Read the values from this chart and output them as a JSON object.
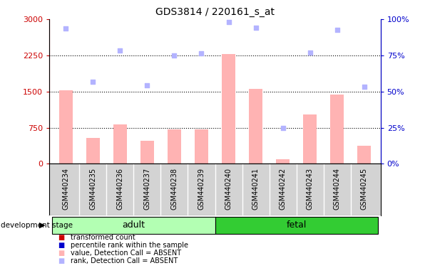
{
  "title": "GDS3814 / 220161_s_at",
  "categories": [
    "GSM440234",
    "GSM440235",
    "GSM440236",
    "GSM440237",
    "GSM440238",
    "GSM440239",
    "GSM440240",
    "GSM440241",
    "GSM440242",
    "GSM440243",
    "GSM440244",
    "GSM440245"
  ],
  "bar_values": [
    1530,
    530,
    820,
    480,
    710,
    720,
    2270,
    1560,
    100,
    1030,
    1430,
    380
  ],
  "bar_color_absent": "#ffb3b3",
  "rank_values": [
    2800,
    1700,
    2350,
    1620,
    2250,
    2290,
    2940,
    2820,
    750,
    2300,
    2770,
    1600
  ],
  "rank_color_absent": "#b3b3ff",
  "left_ylim": [
    0,
    3000
  ],
  "right_ylim": [
    0,
    100
  ],
  "left_yticks": [
    0,
    750,
    1500,
    2250,
    3000
  ],
  "right_yticks": [
    0,
    25,
    50,
    75,
    100
  ],
  "left_yticklabels": [
    "0",
    "750",
    "1500",
    "2250",
    "3000"
  ],
  "right_yticklabels": [
    "0%",
    "25%",
    "50%",
    "75%",
    "100%"
  ],
  "left_tick_color": "#cc0000",
  "right_tick_color": "#0000cc",
  "group_labels": [
    "adult",
    "fetal"
  ],
  "group_adult_range": [
    0,
    5
  ],
  "group_fetal_range": [
    6,
    11
  ],
  "group_color_adult": "#b3ffb3",
  "group_color_fetal": "#33cc33",
  "bar_width": 0.5,
  "background_color": "#ffffff",
  "xlabel_area_color": "#d3d3d3",
  "legend_items": [
    {
      "label": "transformed count",
      "color": "#cc0000"
    },
    {
      "label": "percentile rank within the sample",
      "color": "#0000cc"
    },
    {
      "label": "value, Detection Call = ABSENT",
      "color": "#ffb3b3"
    },
    {
      "label": "rank, Detection Call = ABSENT",
      "color": "#b3b3ff"
    }
  ],
  "dev_stage_label": "development stage",
  "figsize": [
    6.03,
    3.84
  ],
  "dpi": 100
}
